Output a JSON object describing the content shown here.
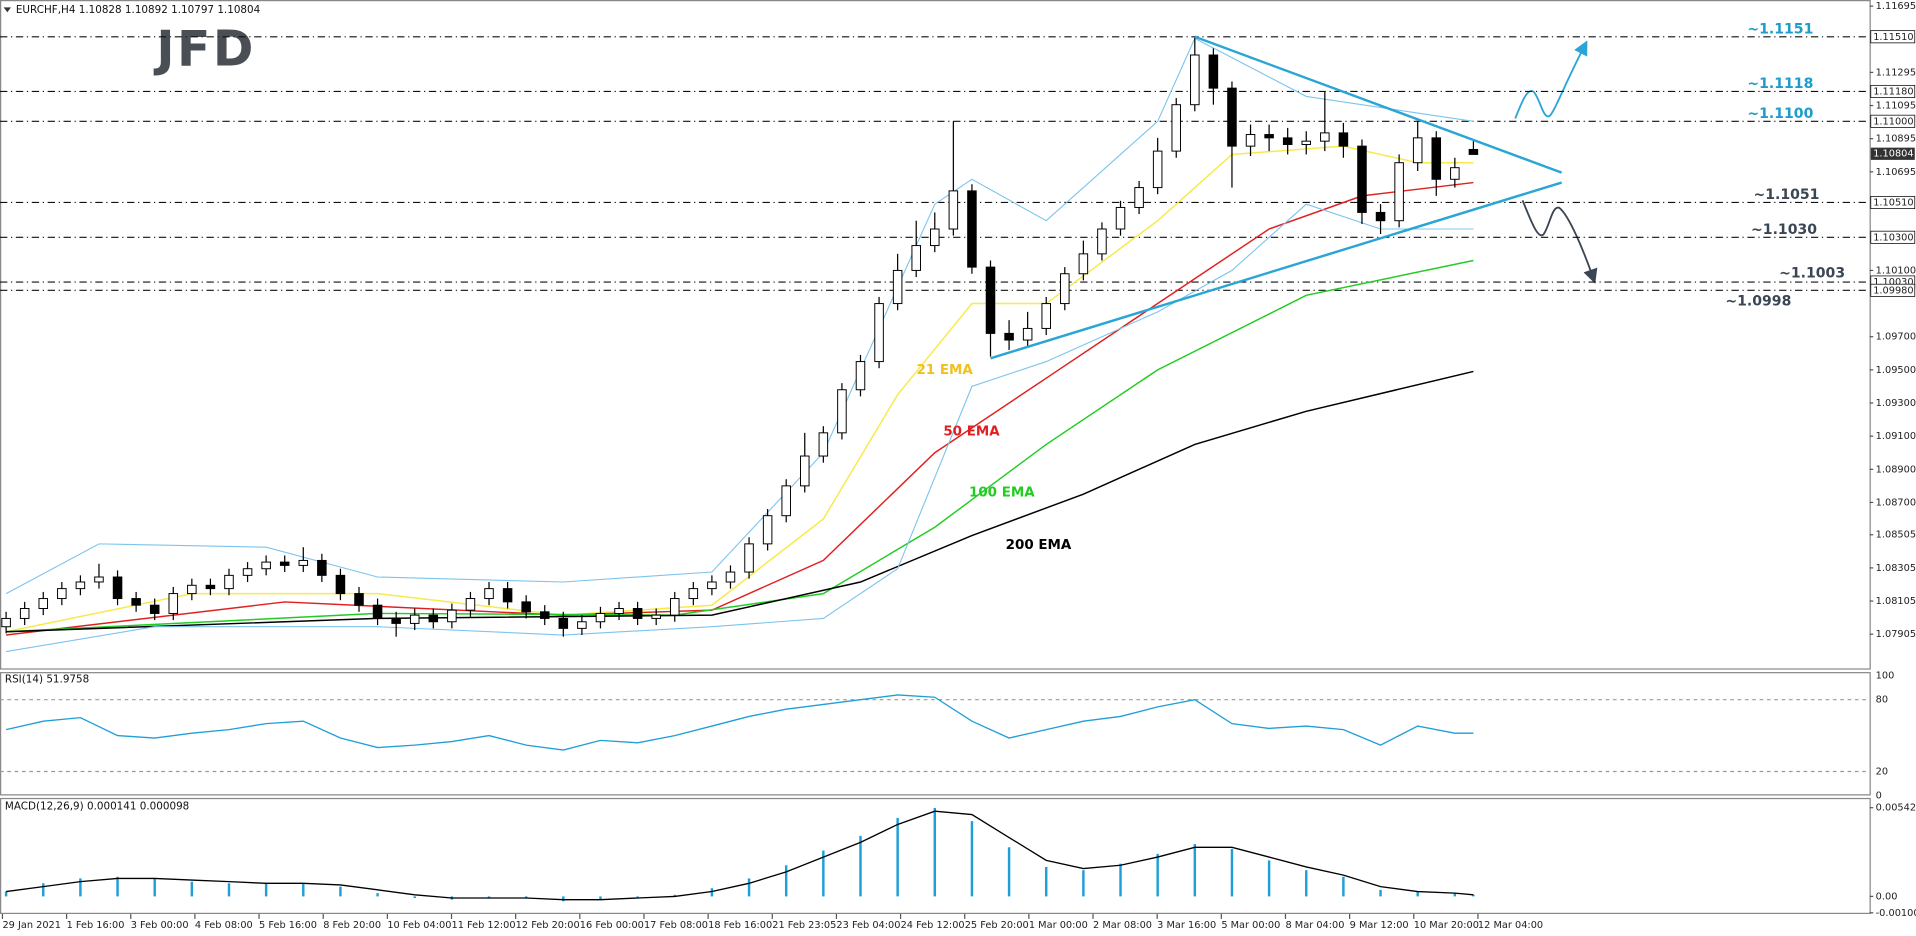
{
  "chart_data": [
    {
      "type": "candlestick",
      "title": "EURCHF,H4  1.10828 1.10892 1.10797 1.10804",
      "logo": "JFD",
      "open": [
        1.0795,
        1.08,
        1.0806,
        1.0812,
        1.0818,
        1.0822,
        1.0825,
        1.0812,
        1.0808,
        1.0803,
        1.0815,
        1.082,
        1.0818,
        1.0826,
        1.083,
        1.0834,
        1.0832,
        1.0835,
        1.0826,
        1.0815,
        1.0808,
        1.08,
        1.0797,
        1.0802,
        1.0798,
        1.0805,
        1.0812,
        1.0818,
        1.081,
        1.0804,
        1.08,
        1.0794,
        1.0798,
        1.0803,
        1.0806,
        1.08,
        1.0802,
        1.0812,
        1.0818,
        1.0822,
        1.0828,
        1.0845,
        1.0862,
        1.088,
        1.0898,
        1.0912,
        1.0938,
        1.0955,
        1.099,
        1.101,
        1.1025,
        1.1035,
        1.1058,
        1.1012,
        1.0972,
        1.0968,
        1.0975,
        1.099,
        1.1008,
        1.102,
        1.1035,
        1.1048,
        1.106,
        1.1082,
        1.111,
        1.114,
        1.112,
        1.1085,
        1.1092,
        1.109,
        1.1086,
        1.1088,
        1.1093,
        1.1085,
        1.1045,
        1.104,
        1.1075,
        1.109,
        1.1065,
        1.1083
      ],
      "high": [
        1.0804,
        1.081,
        1.0816,
        1.0822,
        1.0826,
        1.0833,
        1.0829,
        1.0816,
        1.0812,
        1.0819,
        1.0824,
        1.0824,
        1.083,
        1.0834,
        1.0838,
        1.0838,
        1.0843,
        1.0839,
        1.083,
        1.0819,
        1.0812,
        1.0804,
        1.0806,
        1.0806,
        1.0809,
        1.0816,
        1.0822,
        1.0822,
        1.0814,
        1.0808,
        1.0804,
        1.0802,
        1.0807,
        1.081,
        1.081,
        1.0806,
        1.0816,
        1.0822,
        1.0826,
        1.0832,
        1.0849,
        1.0866,
        1.0884,
        1.0912,
        1.0916,
        1.0942,
        1.0959,
        1.0994,
        1.102,
        1.104,
        1.1045,
        1.11,
        1.1062,
        1.1016,
        1.098,
        1.0985,
        1.0994,
        1.1012,
        1.1028,
        1.1039,
        1.1052,
        1.1064,
        1.109,
        1.1114,
        1.1151,
        1.1144,
        1.1124,
        1.1098,
        1.1098,
        1.1096,
        1.1094,
        1.1118,
        1.1099,
        1.1089,
        1.105,
        1.108,
        1.11,
        1.1094,
        1.1078,
        1.1089
      ],
      "low": [
        1.0791,
        1.0796,
        1.0802,
        1.0808,
        1.0814,
        1.0818,
        1.0808,
        1.0804,
        1.0799,
        1.0799,
        1.0811,
        1.0814,
        1.0814,
        1.0822,
        1.0826,
        1.0828,
        1.0828,
        1.0822,
        1.0811,
        1.0804,
        1.0796,
        1.0789,
        1.0793,
        1.0794,
        1.0794,
        1.0801,
        1.0808,
        1.0806,
        1.08,
        1.0796,
        1.0789,
        1.079,
        1.0794,
        1.0799,
        1.0796,
        1.0796,
        1.0798,
        1.0808,
        1.0814,
        1.0818,
        1.0824,
        1.0841,
        1.0858,
        1.0876,
        1.0894,
        1.0908,
        1.0934,
        1.0951,
        1.0986,
        1.1006,
        1.1021,
        1.1031,
        1.1008,
        1.0958,
        1.0962,
        1.0964,
        1.0971,
        1.0986,
        1.1004,
        1.1016,
        1.1031,
        1.1044,
        1.1056,
        1.1078,
        1.1106,
        1.111,
        1.106,
        1.1079,
        1.1082,
        1.108,
        1.108,
        1.1082,
        1.1078,
        1.1038,
        1.1032,
        1.1036,
        1.107,
        1.1055,
        1.106,
        1.108
      ],
      "close": [
        1.08,
        1.0806,
        1.0812,
        1.0818,
        1.0822,
        1.0825,
        1.0812,
        1.0808,
        1.0803,
        1.0815,
        1.082,
        1.0818,
        1.0826,
        1.083,
        1.0834,
        1.0832,
        1.0835,
        1.0826,
        1.0815,
        1.0808,
        1.08,
        1.0797,
        1.0802,
        1.0798,
        1.0805,
        1.0812,
        1.0818,
        1.081,
        1.0804,
        1.08,
        1.0794,
        1.0798,
        1.0803,
        1.0806,
        1.08,
        1.0802,
        1.0812,
        1.0818,
        1.0822,
        1.0828,
        1.0845,
        1.0862,
        1.088,
        1.0898,
        1.0912,
        1.0938,
        1.0955,
        1.099,
        1.101,
        1.1025,
        1.1035,
        1.1058,
        1.1012,
        1.0972,
        1.0968,
        1.0975,
        1.099,
        1.1008,
        1.102,
        1.1035,
        1.1048,
        1.106,
        1.1082,
        1.111,
        1.114,
        1.112,
        1.1085,
        1.1092,
        1.109,
        1.1086,
        1.1088,
        1.1093,
        1.1085,
        1.1045,
        1.104,
        1.1075,
        1.109,
        1.1065,
        1.1072,
        1.108
      ],
      "up_color": "#ffffff",
      "down_color": "#000000",
      "lines": [
        {
          "name": "21 EMA",
          "color": "#f7ea4a",
          "label_color": "#f0c020",
          "x": [
            0,
            10,
            20,
            30,
            38,
            44,
            48,
            52,
            56,
            62,
            66,
            72,
            76,
            79
          ],
          "values": [
            1.0792,
            1.0815,
            1.0815,
            1.0802,
            1.0808,
            1.086,
            1.0935,
            1.099,
            1.099,
            1.104,
            1.108,
            1.1085,
            1.1075,
            1.1075
          ]
        },
        {
          "name": "50 EMA",
          "color": "#e02020",
          "label_color": "#e02020",
          "x": [
            0,
            15,
            30,
            38,
            44,
            50,
            56,
            62,
            68,
            73,
            79
          ],
          "values": [
            1.079,
            1.081,
            1.0802,
            1.0805,
            1.0835,
            1.09,
            1.0945,
            1.099,
            1.1035,
            1.1055,
            1.1063
          ]
        },
        {
          "name": "100 EMA",
          "color": "#22cc22",
          "label_color": "#22cc22",
          "x": [
            0,
            20,
            36,
            44,
            50,
            56,
            62,
            70,
            79
          ],
          "values": [
            1.0792,
            1.0803,
            1.0802,
            1.0815,
            1.0855,
            1.0905,
            1.095,
            1.0995,
            1.1016
          ]
        },
        {
          "name": "200 EMA",
          "color": "#000000",
          "label_color": "#000000",
          "x": [
            0,
            20,
            38,
            46,
            52,
            58,
            64,
            70,
            79
          ],
          "values": [
            1.0792,
            1.08,
            1.0802,
            1.0822,
            1.085,
            1.0875,
            1.0905,
            1.0925,
            1.0949
          ]
        },
        {
          "color": "#7cc4ec",
          "x": [
            0,
            5,
            14,
            20,
            30,
            38,
            44,
            50,
            52,
            56,
            62,
            64,
            70,
            76,
            79
          ],
          "values": [
            1.0815,
            1.0845,
            1.0843,
            1.0825,
            1.0822,
            1.0828,
            1.09,
            1.105,
            1.1065,
            1.104,
            1.11,
            1.115,
            1.1115,
            1.1105,
            1.11
          ]
        },
        {
          "color": "#7cc4ec",
          "x": [
            0,
            8,
            20,
            30,
            38,
            44,
            48,
            52,
            56,
            62,
            66,
            70,
            74,
            79
          ],
          "values": [
            1.078,
            1.0795,
            1.0795,
            1.079,
            1.0795,
            1.08,
            1.083,
            1.094,
            1.0955,
            1.0985,
            1.101,
            1.105,
            1.1035,
            1.1035
          ]
        }
      ],
      "trendlines": [
        {
          "color": "#2aa5d5",
          "x": [
            64,
            83.75
          ],
          "values": [
            1.1151,
            1.1069
          ]
        },
        {
          "color": "#2aa5d5",
          "x": [
            53,
            83.75
          ],
          "values": [
            1.0957,
            1.1063
          ]
        }
      ],
      "levels": [
        {
          "value": 1.1151,
          "label": "~1.1151",
          "axis_label": "1.11510",
          "color": "#1e9ccc"
        },
        {
          "value": 1.1118,
          "label": "~1.1118",
          "axis_label": "1.11180",
          "color": "#1e9ccc"
        },
        {
          "value": 1.11,
          "label": "~1.1100",
          "axis_label": "1.11000",
          "color": "#1e9ccc"
        },
        {
          "value": 1.1051,
          "label": "~1.1051",
          "axis_label": "1.10510",
          "color": "#3b4654"
        },
        {
          "value": 1.103,
          "label": "~1.1030",
          "axis_label": "1.10300",
          "color": "#3b4654"
        },
        {
          "value": 1.1003,
          "label": "~1.1003",
          "axis_label": "1.10030",
          "color": "#3b4654"
        },
        {
          "value": 1.0998,
          "label": "~1.0998",
          "axis_label": "1.09980",
          "color": "#3b4654"
        }
      ],
      "last_price": {
        "value": 1.10804,
        "label": "1.10804"
      },
      "ylim": [
        1.07905,
        1.11695
      ],
      "yticks": [
        {
          "value": 1.11695,
          "label": "1.11695"
        },
        {
          "value": 1.11295,
          "label": "1.11295"
        },
        {
          "value": 1.11095,
          "label": "1.11095"
        },
        {
          "value": 1.10895,
          "label": "1.10895"
        },
        {
          "value": 1.10695,
          "label": "1.10695"
        },
        {
          "value": 1.101,
          "label": "1.10100"
        },
        {
          "value": 1.097,
          "label": "1.09700"
        },
        {
          "value": 1.095,
          "label": "1.09500"
        },
        {
          "value": 1.093,
          "label": "1.09300"
        },
        {
          "value": 1.091,
          "label": "1.09100"
        },
        {
          "value": 1.089,
          "label": "1.08900"
        },
        {
          "value": 1.087,
          "label": "1.08700"
        },
        {
          "value": 1.08505,
          "label": "1.08505"
        },
        {
          "value": 1.08305,
          "label": "1.08305"
        },
        {
          "value": 1.08105,
          "label": "1.08105"
        },
        {
          "value": 1.07905,
          "label": "1.07905"
        }
      ],
      "time_labels": [
        "29 Jan 2021",
        "1 Feb 16:00",
        "3 Feb 00:00",
        "4 Feb 08:00",
        "5 Feb 16:00",
        "8 Feb 20:00",
        "10 Feb 04:00",
        "11 Feb 12:00",
        "12 Feb 20:00",
        "16 Feb 00:00",
        "17 Feb 08:00",
        "18 Feb 16:00",
        "21 Feb 23:05",
        "23 Feb 04:00",
        "24 Feb 12:00",
        "25 Feb 20:00",
        "1 Mar 00:00",
        "2 Mar 08:00",
        "3 Mar 16:00",
        "5 Mar 00:00",
        "8 Mar 04:00",
        "9 Mar 12:00",
        "10 Mar 20:00",
        "12 Mar 04:00"
      ]
    },
    {
      "type": "line",
      "title": "RSI(14) 51.9758",
      "color": "#1f9fd8",
      "x": [
        0,
        2,
        4,
        6,
        8,
        10,
        12,
        14,
        16,
        18,
        20,
        22,
        24,
        26,
        28,
        30,
        32,
        34,
        36,
        38,
        40,
        42,
        44,
        46,
        48,
        50,
        52,
        54,
        56,
        58,
        60,
        62,
        64,
        66,
        68,
        70,
        72,
        74,
        76,
        78,
        79
      ],
      "values": [
        55,
        62,
        65,
        50,
        48,
        52,
        55,
        60,
        62,
        48,
        40,
        42,
        45,
        50,
        42,
        38,
        46,
        44,
        50,
        58,
        66,
        72,
        76,
        80,
        84,
        82,
        62,
        48,
        55,
        62,
        66,
        74,
        80,
        60,
        56,
        58,
        55,
        42,
        58,
        52,
        52
      ],
      "ylim": [
        0,
        100
      ],
      "yticks": [
        0,
        20,
        80,
        100
      ]
    },
    {
      "type": "bar",
      "title": "MACD(12,26,9) 0.000141 0.000098",
      "color": "#1f9fd8",
      "x": [
        0,
        2,
        4,
        6,
        8,
        10,
        12,
        14,
        16,
        18,
        20,
        22,
        24,
        26,
        28,
        30,
        32,
        34,
        36,
        38,
        40,
        42,
        44,
        46,
        48,
        50,
        52,
        54,
        56,
        58,
        60,
        62,
        64,
        66,
        68,
        70,
        72,
        74,
        76,
        78,
        79
      ],
      "values": [
        0.0003,
        0.0008,
        0.0011,
        0.0012,
        0.0011,
        0.0009,
        0.0008,
        0.0008,
        0.0008,
        0.0006,
        0.0002,
        -0.0001,
        -0.0002,
        -0.0001,
        -0.0001,
        -0.0003,
        -0.0002,
        -0.0001,
        0.0001,
        0.0005,
        0.0011,
        0.0019,
        0.0028,
        0.0037,
        0.0048,
        0.0054,
        0.0046,
        0.003,
        0.0018,
        0.0016,
        0.002,
        0.0026,
        0.0032,
        0.0029,
        0.0022,
        0.0016,
        0.0012,
        0.0004,
        0.0003,
        0.0002,
        0.0001
      ],
      "signal": {
        "color": "#000000",
        "values": [
          0.0003,
          0.0006,
          0.0009,
          0.0011,
          0.0011,
          0.001,
          0.0009,
          0.0008,
          0.0008,
          0.0007,
          0.0004,
          0.0001,
          -0.0001,
          -0.0001,
          -0.0001,
          -0.0002,
          -0.0002,
          -0.0001,
          0,
          0.0003,
          0.0008,
          0.0015,
          0.0024,
          0.0033,
          0.0044,
          0.0052,
          0.005,
          0.0036,
          0.0022,
          0.0017,
          0.0019,
          0.0024,
          0.003,
          0.003,
          0.0024,
          0.0018,
          0.0013,
          0.0006,
          0.0003,
          0.0002,
          0.0001
        ]
      },
      "ylim": [
        -0.001001,
        0.00542
      ],
      "yticks": [
        -0.001001,
        {
          "value": 0,
          "label": "0.00"
        },
        0.00542
      ]
    }
  ]
}
